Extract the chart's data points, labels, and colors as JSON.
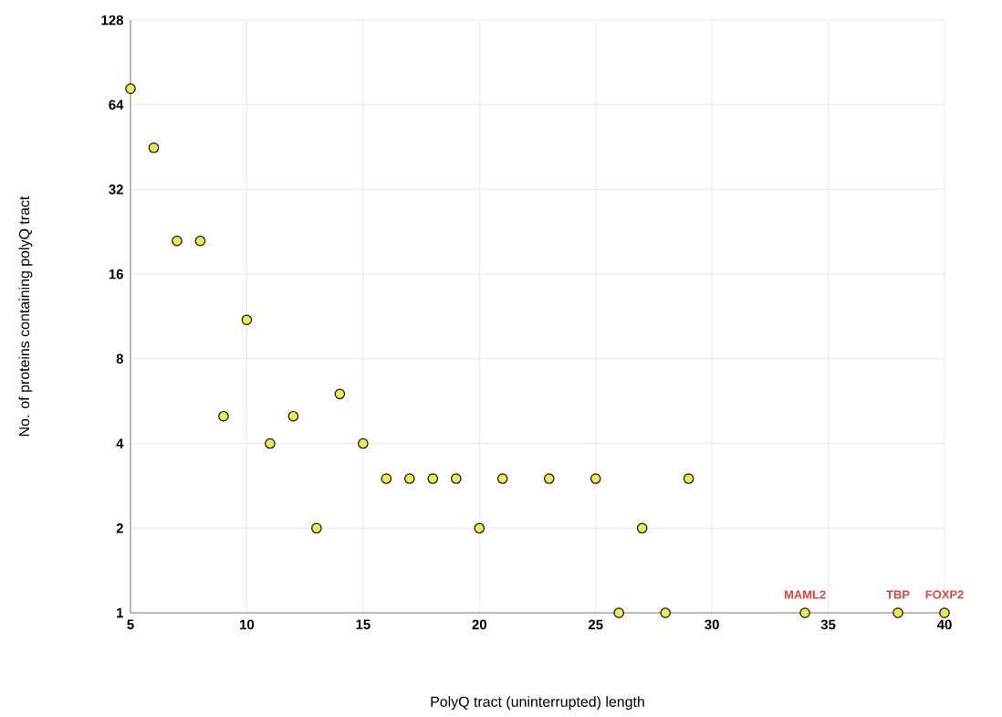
{
  "chart_data": {
    "type": "scatter",
    "xlabel": "PolyQ tract (uninterrupted) length",
    "ylabel": "No. of proteins containing polyQ tract",
    "x": [
      5,
      6,
      7,
      8,
      9,
      10,
      11,
      12,
      13,
      14,
      15,
      16,
      17,
      18,
      19,
      20,
      21,
      23,
      25,
      26,
      27,
      28,
      29,
      34,
      38,
      40
    ],
    "values": [
      73,
      45,
      21,
      21,
      5,
      11,
      4,
      5,
      2,
      6,
      4,
      3,
      3,
      3,
      3,
      2,
      3,
      3,
      3,
      1,
      2,
      1,
      3,
      1,
      1,
      1
    ],
    "color": "#eeee3c",
    "marker": "circle",
    "log": "y",
    "grid": true,
    "xlim": [
      5,
      40
    ],
    "xticks": [
      5,
      10,
      15,
      20,
      25,
      30,
      35,
      40
    ],
    "ylim": [
      1,
      128
    ],
    "yticks": [
      1,
      2,
      4,
      8,
      16,
      32,
      64,
      128
    ],
    "annotations": [
      {
        "text": "MAML2",
        "x": 34,
        "y": 1
      },
      {
        "text": "TBP",
        "x": 38,
        "y": 1
      },
      {
        "text": "FOXP2",
        "x": 40,
        "y": 1
      }
    ]
  }
}
